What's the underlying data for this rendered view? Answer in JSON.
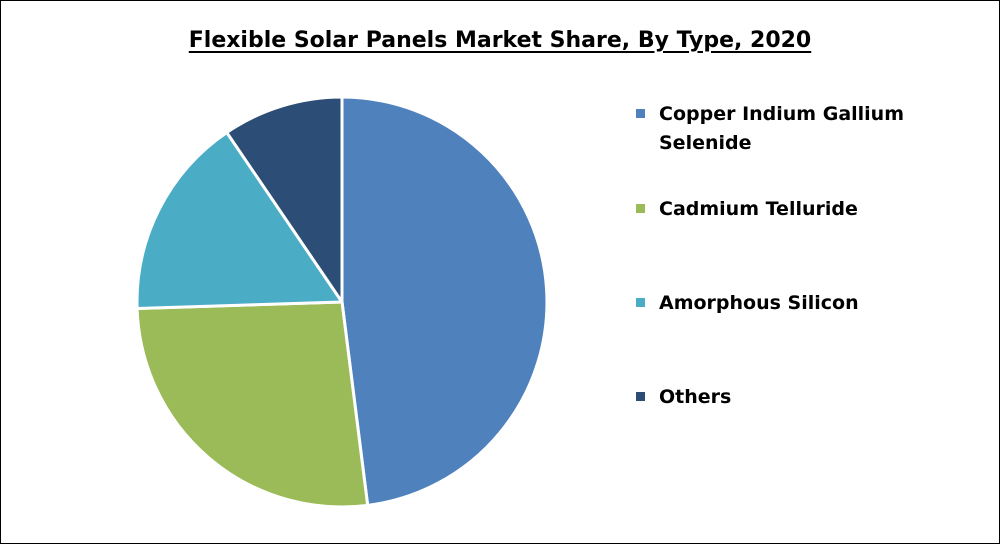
{
  "chart_data": {
    "type": "pie",
    "title": "Flexible Solar Panels Market Share, By Type, 2020",
    "slices": [
      {
        "label": "Copper Indium Gallium Selenide",
        "value": 48,
        "color": "#4F81BD"
      },
      {
        "label": "Cadmium Telluride",
        "value": 26.5,
        "color": "#9BBB59"
      },
      {
        "label": "Amorphous Silicon",
        "value": 16,
        "color": "#4BACC6"
      },
      {
        "label": "Others",
        "value": 9.5,
        "color": "#2C4D75"
      }
    ],
    "legend_position": "right"
  }
}
